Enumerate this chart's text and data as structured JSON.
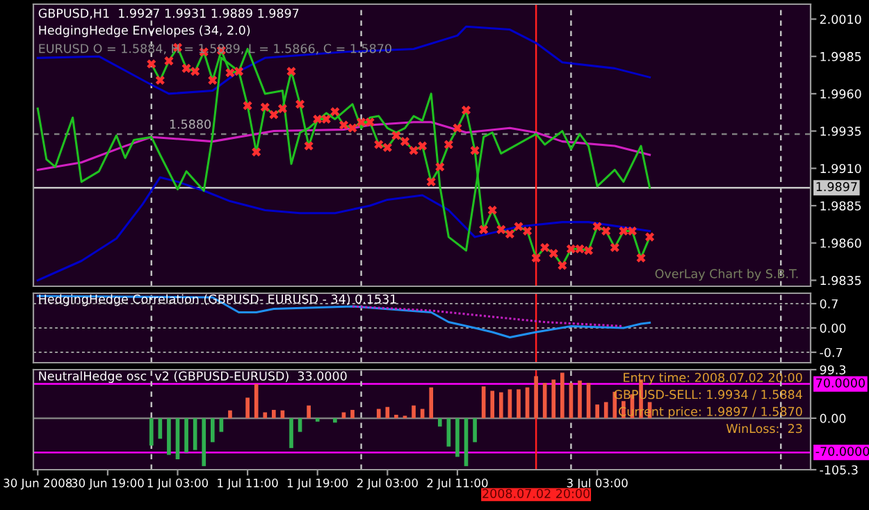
{
  "chart_data": [
    {
      "type": "line",
      "title": "GBPUSD,H1  1.9927 1.9931 1.9889 1.9897",
      "subtitle": "HedgingHedge Envelopes (34, 2.0)",
      "annotations": [
        "EURUSD O = 1.5884, H = 1.5889, L = 1.5866, C = 1.5870",
        "OverLay Chart by S.B.T.",
        {
          "text": "1.5880",
          "x": "2008-07-01T02:00",
          "y": 1.9933
        }
      ],
      "xlim": [
        "2008-06-30T10:30",
        "2008-07-04T03:24"
      ],
      "ylim": [
        1.9831,
        2.002
      ],
      "yticks": [
        {
          "value": 2.001,
          "label": "2.0010"
        },
        {
          "value": 1.9985,
          "label": "1.9985"
        },
        {
          "value": 1.996,
          "label": "1.9960"
        },
        {
          "value": 1.9935,
          "label": "1.9935"
        },
        {
          "value": 1.991,
          "label": "1.9910"
        },
        {
          "value": 1.9885,
          "label": "1.9885"
        },
        {
          "value": 1.986,
          "label": "1.9860"
        },
        {
          "value": 1.9835,
          "label": "1.9835"
        }
      ],
      "tick_labels": "y",
      "grid": false,
      "legend": false,
      "ref_lines": [
        {
          "axis": "y",
          "value": 1.9933,
          "color": "#808080",
          "line_style": "dashed"
        },
        {
          "axis": "y",
          "value": 1.9897,
          "label": "1.9897",
          "color": "#c8c8c8"
        },
        {
          "axis": "x",
          "value": "2008-07-01T00:00",
          "color": "#c0c0c0",
          "line_style": "dashed"
        },
        {
          "axis": "x",
          "value": "2008-07-02T00:00",
          "color": "#c0c0c0",
          "line_style": "dashed"
        },
        {
          "axis": "x",
          "value": "2008-07-03T00:00",
          "color": "#c0c0c0",
          "line_style": "dashed"
        },
        {
          "axis": "x",
          "value": "2008-07-04T00:00",
          "color": "#c0c0c0",
          "line_style": "dashed"
        },
        {
          "axis": "x",
          "value": "2008-07-02T20:00",
          "color": "#ff2020"
        }
      ],
      "series": [
        {
          "type": "line",
          "color": "#0000c8",
          "x": [
            "2008-06-30T11:00",
            "2008-06-30T18:00",
            "2008-07-01T00:00",
            "2008-07-01T02:00",
            "2008-07-01T07:00",
            "2008-07-01T10:00",
            "2008-07-01T13:00",
            "2008-07-01T22:00",
            "2008-07-02T06:00",
            "2008-07-02T11:00",
            "2008-07-02T12:00",
            "2008-07-02T17:00",
            "2008-07-02T20:00",
            "2008-07-02T23:00",
            "2008-07-03T05:00",
            "2008-07-03T09:00"
          ],
          "values": [
            1.9984,
            1.9985,
            1.9966,
            1.996,
            1.9962,
            1.9975,
            1.9984,
            1.9988,
            1.999,
            1.9999,
            2.0005,
            2.0003,
            1.9994,
            1.9981,
            1.9977,
            1.9971
          ]
        },
        {
          "type": "line",
          "color": "#0000c8",
          "x": [
            "2008-06-30T11:00",
            "2008-06-30T16:00",
            "2008-06-30T20:00",
            "2008-06-30T23:00",
            "2008-07-01T01:00",
            "2008-07-01T03:00",
            "2008-07-01T06:00",
            "2008-07-01T09:00",
            "2008-07-01T13:00",
            "2008-07-01T17:00",
            "2008-07-01T21:00",
            "2008-07-02T01:00",
            "2008-07-02T03:00",
            "2008-07-02T07:00",
            "2008-07-02T10:00",
            "2008-07-02T13:00",
            "2008-07-02T18:00",
            "2008-07-02T23:00",
            "2008-07-03T02:00",
            "2008-07-03T09:00"
          ],
          "values": [
            1.9835,
            1.9848,
            1.9863,
            1.9886,
            1.9904,
            1.9901,
            1.9895,
            1.9888,
            1.9882,
            1.988,
            1.988,
            1.9885,
            1.9889,
            1.9892,
            1.9882,
            1.9864,
            1.9871,
            1.9874,
            1.9874,
            1.9868
          ]
        },
        {
          "type": "line",
          "color": "#d020c0",
          "x": [
            "2008-06-30T11:00",
            "2008-06-30T16:00",
            "2008-06-30T21:00",
            "2008-07-01T00:00",
            "2008-07-01T07:00",
            "2008-07-01T14:00",
            "2008-07-01T22:00",
            "2008-07-02T01:00",
            "2008-07-02T06:00",
            "2008-07-02T08:00",
            "2008-07-02T12:00",
            "2008-07-02T17:00",
            "2008-07-02T20:00",
            "2008-07-02T23:00",
            "2008-07-03T05:00",
            "2008-07-03T09:00"
          ],
          "values": [
            1.9909,
            1.9914,
            1.9925,
            1.9931,
            1.9928,
            1.9935,
            1.9936,
            1.9939,
            1.9941,
            1.9941,
            1.9934,
            1.9937,
            1.9934,
            1.9928,
            1.9925,
            1.9919
          ]
        },
        {
          "type": "line",
          "color": "#20c020",
          "x": [
            "2008-06-30T11:00",
            "2008-06-30T12:00",
            "2008-06-30T13:00",
            "2008-06-30T15:00",
            "2008-06-30T16:00",
            "2008-06-30T18:00",
            "2008-06-30T20:00",
            "2008-06-30T21:00",
            "2008-06-30T22:00",
            "2008-07-01T00:00",
            "2008-07-01T01:00",
            "2008-07-01T03:00",
            "2008-07-01T04:00",
            "2008-07-01T06:00",
            "2008-07-01T07:00",
            "2008-07-01T08:00",
            "2008-07-01T10:00",
            "2008-07-01T11:00",
            "2008-07-01T13:00",
            "2008-07-01T15:00",
            "2008-07-01T16:00",
            "2008-07-01T17:00",
            "2008-07-01T18:00",
            "2008-07-01T20:00",
            "2008-07-01T21:00",
            "2008-07-01T23:00",
            "2008-07-02T00:00",
            "2008-07-02T01:00",
            "2008-07-02T02:00",
            "2008-07-02T03:00",
            "2008-07-02T04:00",
            "2008-07-02T05:00",
            "2008-07-02T06:00",
            "2008-07-02T07:00",
            "2008-07-02T08:00",
            "2008-07-02T09:00",
            "2008-07-02T10:00",
            "2008-07-02T12:00",
            "2008-07-02T14:00",
            "2008-07-02T15:00",
            "2008-07-02T16:00",
            "2008-07-02T20:00",
            "2008-07-02T21:00",
            "2008-07-02T23:00",
            "2008-07-03T00:00",
            "2008-07-03T01:00",
            "2008-07-03T02:00",
            "2008-07-03T03:00",
            "2008-07-03T05:00",
            "2008-07-03T06:00",
            "2008-07-03T08:00",
            "2008-07-03T09:00"
          ],
          "values": [
            1.995,
            1.9916,
            1.9911,
            1.9944,
            1.9901,
            1.9908,
            1.9932,
            1.9917,
            1.9929,
            1.9931,
            1.9919,
            1.9896,
            1.9908,
            1.9895,
            1.9932,
            1.9984,
            1.9975,
            1.999,
            1.996,
            1.9962,
            1.9913,
            1.9934,
            1.9937,
            1.9947,
            1.9943,
            1.9953,
            1.9937,
            1.9944,
            1.9945,
            1.9937,
            1.9934,
            1.9937,
            1.9945,
            1.9942,
            1.996,
            1.9898,
            1.9864,
            1.9855,
            1.9931,
            1.9934,
            1.992,
            1.9933,
            1.9926,
            1.9935,
            1.9923,
            1.9933,
            1.9925,
            1.9898,
            1.9909,
            1.9901,
            1.9925,
            1.9897
          ]
        },
        {
          "type": "line",
          "color": "#20c020",
          "values": [
            1.998,
            1.9969,
            1.9982,
            1.9991,
            1.9977,
            1.9975,
            1.9988,
            1.9969,
            1.9989,
            1.9974,
            1.9975,
            1.9952,
            1.9921,
            1.9951,
            1.9946,
            1.995,
            1.9975,
            1.9953,
            1.9925,
            1.9943,
            1.9943,
            1.9948,
            1.9939,
            1.9937,
            1.9941,
            1.9941,
            1.9926,
            1.9924,
            1.9932,
            1.9928,
            1.9922,
            1.9925,
            1.9901,
            1.9911,
            1.9926,
            1.9937,
            1.9949,
            1.9922,
            1.9869,
            1.9882,
            1.9869,
            1.9866,
            1.9871,
            1.9868,
            1.985,
            1.9857,
            1.9853,
            1.9845,
            1.9856,
            1.9856,
            1.9855,
            1.9871,
            1.9868,
            1.9857,
            1.9868,
            1.9868,
            1.985,
            1.9864
          ]
        },
        {
          "type": "scatter",
          "color": "#ff3030",
          "marker": "cross",
          "values": [
            1.998,
            1.9969,
            1.9982,
            1.9991,
            1.9977,
            1.9975,
            1.9988,
            1.9969,
            1.9989,
            1.9974,
            1.9975,
            1.9952,
            1.9921,
            1.9951,
            1.9946,
            1.995,
            1.9975,
            1.9953,
            1.9925,
            1.9943,
            1.9943,
            1.9948,
            1.9939,
            1.9937,
            1.9941,
            1.9941,
            1.9926,
            1.9924,
            1.9932,
            1.9928,
            1.9922,
            1.9925,
            1.9901,
            1.9911,
            1.9926,
            1.9937,
            1.9949,
            1.9922,
            1.9869,
            1.9882,
            1.9869,
            1.9866,
            1.9871,
            1.9868,
            1.985,
            1.9857,
            1.9853,
            1.9845,
            1.9856,
            1.9856,
            1.9855,
            1.9871,
            1.9868,
            1.9857,
            1.9868,
            1.9868,
            1.985,
            1.9864
          ]
        }
      ],
      "x": [
        "2008-07-01T00:00",
        "2008-07-01T01:00",
        "2008-07-01T02:00",
        "2008-07-01T03:00",
        "2008-07-01T04:00",
        "2008-07-01T05:00",
        "2008-07-01T06:00",
        "2008-07-01T07:00",
        "2008-07-01T08:00",
        "2008-07-01T09:00",
        "2008-07-01T10:00",
        "2008-07-01T11:00",
        "2008-07-01T12:00",
        "2008-07-01T13:00",
        "2008-07-01T14:00",
        "2008-07-01T15:00",
        "2008-07-01T16:00",
        "2008-07-01T17:00",
        "2008-07-01T18:00",
        "2008-07-01T19:00",
        "2008-07-01T20:00",
        "2008-07-01T21:00",
        "2008-07-01T22:00",
        "2008-07-01T23:00",
        "2008-07-02T00:00",
        "2008-07-02T01:00",
        "2008-07-02T02:00",
        "2008-07-02T03:00",
        "2008-07-02T04:00",
        "2008-07-02T05:00",
        "2008-07-02T06:00",
        "2008-07-02T07:00",
        "2008-07-02T08:00",
        "2008-07-02T09:00",
        "2008-07-02T10:00",
        "2008-07-02T11:00",
        "2008-07-02T12:00",
        "2008-07-02T13:00",
        "2008-07-02T14:00",
        "2008-07-02T15:00",
        "2008-07-02T16:00",
        "2008-07-02T17:00",
        "2008-07-02T18:00",
        "2008-07-02T19:00",
        "2008-07-02T20:00",
        "2008-07-02T21:00",
        "2008-07-02T22:00",
        "2008-07-02T23:00",
        "2008-07-03T00:00",
        "2008-07-03T01:00",
        "2008-07-03T02:00",
        "2008-07-03T03:00",
        "2008-07-03T04:00",
        "2008-07-03T05:00",
        "2008-07-03T06:00",
        "2008-07-03T07:00",
        "2008-07-03T08:00",
        "2008-07-03T09:00"
      ]
    },
    {
      "type": "line",
      "title": "HedgingHedge Correlation (GBPUSD- EURUSD - 34) 0.1531",
      "xlim": [
        "2008-06-30T10:30",
        "2008-07-04T03:24"
      ],
      "ylim": [
        -1.0,
        1.0
      ],
      "yticks": [
        0.7,
        {
          "value": 0,
          "label": "0.00"
        },
        {
          "value": -0.7,
          "label": "-0.7"
        }
      ],
      "tick_labels": "y",
      "grid": "y",
      "legend": false,
      "ref_lines": [
        {
          "axis": "x",
          "value": "2008-07-01T00:00",
          "color": "#c0c0c0",
          "line_style": "dashed"
        },
        {
          "axis": "x",
          "value": "2008-07-02T00:00",
          "color": "#c0c0c0",
          "line_style": "dashed"
        },
        {
          "axis": "x",
          "value": "2008-07-03T00:00",
          "color": "#c0c0c0",
          "line_style": "dashed"
        },
        {
          "axis": "x",
          "value": "2008-07-04T00:00",
          "color": "#c0c0c0",
          "line_style": "dashed"
        },
        {
          "axis": "x",
          "value": "2008-07-02T20:00",
          "color": "#ff2020"
        }
      ],
      "series": [
        {
          "type": "line",
          "color": "#c020c0",
          "line_style": "dotted",
          "x": [
            "2008-07-01T23:00",
            "2008-07-02T08:00",
            "2008-07-02T21:00",
            "2008-07-03T06:00"
          ],
          "values": [
            0.62,
            0.5,
            0.17,
            0.05
          ]
        },
        {
          "type": "line",
          "color": "#2090f0",
          "x": [
            "2008-06-30T11:00",
            "2008-07-01T07:00",
            "2008-07-01T10:00",
            "2008-07-01T12:00",
            "2008-07-01T14:00",
            "2008-07-01T23:00",
            "2008-07-02T08:00",
            "2008-07-02T10:00",
            "2008-07-02T13:00",
            "2008-07-02T15:00",
            "2008-07-02T17:00",
            "2008-07-02T20:00",
            "2008-07-03T00:00",
            "2008-07-03T06:00",
            "2008-07-03T08:00",
            "2008-07-03T09:00"
          ],
          "values": [
            0.92,
            0.88,
            0.45,
            0.45,
            0.55,
            0.62,
            0.45,
            0.17,
            0.0,
            -0.12,
            -0.27,
            -0.12,
            0.05,
            0.0,
            0.12,
            0.15
          ]
        }
      ]
    },
    {
      "type": "bar",
      "title": "NeutralHedge osc  v2 (GBPUSD-EURUSD)  33.0000",
      "annotations": [
        "Entry time: 2008.07.02 20:00",
        "GBPUSD-SELL: 1.9934 / 1.5884",
        "Current price: 1.9897 / 1.5870",
        "WinLoss:  23"
      ],
      "xlim": [
        "2008-06-30T10:30",
        "2008-07-04T03:24"
      ],
      "ylim": [
        -105.3,
        99.3
      ],
      "xticks": [
        {
          "value": "2008-06-30T11:00",
          "label": "30 Jun 2008"
        },
        {
          "value": "2008-06-30T19:00",
          "label": "30 Jun 19:00"
        },
        {
          "value": "2008-07-01T03:00",
          "label": "1 Jul 03:00"
        },
        {
          "value": "2008-07-01T11:00",
          "label": "1 Jul 11:00"
        },
        {
          "value": "2008-07-01T19:00",
          "label": "1 Jul 19:00"
        },
        {
          "value": "2008-07-02T03:00",
          "label": "2 Jul 03:00"
        },
        {
          "value": "2008-07-02T11:00",
          "label": "2 Jul 11:00"
        },
        {
          "value": "2008-07-03T03:00",
          "label": "3 Jul 03:00"
        }
      ],
      "yticks": [
        99.3,
        {
          "value": 0,
          "label": "0.00"
        },
        -105.3
      ],
      "grid": false,
      "legend": false,
      "ref_lines": [
        {
          "axis": "y",
          "value": 70,
          "label": "70.0000",
          "color": "#ff00ff"
        },
        {
          "axis": "y",
          "value": -70,
          "label": "-70.0000",
          "color": "#ff00ff"
        },
        {
          "axis": "y",
          "value": 0,
          "color": "#808080"
        },
        {
          "axis": "x",
          "value": "2008-07-01T00:00",
          "color": "#c0c0c0",
          "line_style": "dashed"
        },
        {
          "axis": "x",
          "value": "2008-07-02T00:00",
          "color": "#c0c0c0",
          "line_style": "dashed"
        },
        {
          "axis": "x",
          "value": "2008-07-03T00:00",
          "color": "#c0c0c0",
          "line_style": "dashed"
        },
        {
          "axis": "x",
          "value": "2008-07-04T00:00",
          "color": "#c0c0c0",
          "line_style": "dashed"
        },
        {
          "axis": "x",
          "value": "2008-07-02T20:00",
          "label": "2008.07.02 20:00",
          "color": "#ff2020"
        }
      ],
      "x": [
        "2008-07-01T00:00",
        "2008-07-01T01:00",
        "2008-07-01T02:00",
        "2008-07-01T03:00",
        "2008-07-01T04:00",
        "2008-07-01T05:00",
        "2008-07-01T06:00",
        "2008-07-01T07:00",
        "2008-07-01T08:00",
        "2008-07-01T09:00",
        "2008-07-01T10:00",
        "2008-07-01T11:00",
        "2008-07-01T12:00",
        "2008-07-01T13:00",
        "2008-07-01T14:00",
        "2008-07-01T15:00",
        "2008-07-01T16:00",
        "2008-07-01T17:00",
        "2008-07-01T18:00",
        "2008-07-01T19:00",
        "2008-07-01T20:00",
        "2008-07-01T21:00",
        "2008-07-01T22:00",
        "2008-07-01T23:00",
        "2008-07-02T00:00",
        "2008-07-02T01:00",
        "2008-07-02T02:00",
        "2008-07-02T03:00",
        "2008-07-02T04:00",
        "2008-07-02T05:00",
        "2008-07-02T06:00",
        "2008-07-02T07:00",
        "2008-07-02T08:00",
        "2008-07-02T09:00",
        "2008-07-02T10:00",
        "2008-07-02T11:00",
        "2008-07-02T12:00",
        "2008-07-02T13:00",
        "2008-07-02T14:00",
        "2008-07-02T15:00",
        "2008-07-02T16:00",
        "2008-07-02T17:00",
        "2008-07-02T18:00",
        "2008-07-02T19:00",
        "2008-07-02T20:00",
        "2008-07-02T21:00",
        "2008-07-02T22:00",
        "2008-07-02T23:00",
        "2008-07-03T00:00",
        "2008-07-03T01:00",
        "2008-07-03T02:00",
        "2008-07-03T03:00",
        "2008-07-03T04:00",
        "2008-07-03T05:00",
        "2008-07-03T06:00",
        "2008-07-03T07:00",
        "2008-07-03T08:00",
        "2008-07-03T09:00"
      ],
      "values": [
        -56,
        -42,
        -75,
        -84,
        -70,
        -65,
        -98,
        -49,
        -28,
        16,
        null,
        42,
        70,
        12,
        17,
        16,
        -61,
        -28,
        26,
        -7,
        null,
        -9,
        12,
        17,
        null,
        null,
        19,
        23,
        7,
        5,
        26,
        19,
        63,
        -17,
        -58,
        -79,
        -98,
        -49,
        65,
        56,
        53,
        59,
        59,
        63,
        86,
        72,
        79,
        93,
        72,
        77,
        72,
        28,
        33,
        54,
        35,
        49,
        79,
        33
      ],
      "colors": [
        "#30b050",
        "#30b050",
        "#30b050",
        "#30b050",
        "#30b050",
        "#30b050",
        "#30b050",
        "#30b050",
        "#30b050",
        "#f05a40",
        "#f05a40",
        "#f05a40",
        "#f05a40",
        "#f05a40",
        "#f05a40",
        "#f05a40",
        "#30b050",
        "#30b050",
        "#f05a40",
        "#30b050",
        "#f05a40",
        "#30b050",
        "#f05a40",
        "#f05a40",
        "#f05a40",
        "#f05a40",
        "#f05a40",
        "#f05a40",
        "#f05a40",
        "#f05a40",
        "#f05a40",
        "#f05a40",
        "#f05a40",
        "#30b050",
        "#30b050",
        "#30b050",
        "#30b050",
        "#30b050",
        "#f05a40",
        "#f05a40",
        "#f05a40",
        "#f05a40",
        "#f05a40",
        "#f05a40",
        "#f05a40",
        "#f05a40",
        "#f05a40",
        "#f05a40",
        "#f05a40",
        "#f05a40",
        "#f05a40",
        "#f05a40",
        "#f05a40",
        "#f05a40",
        "#f05a40",
        "#f05a40",
        "#f05a40",
        "#f05a40"
      ]
    }
  ]
}
